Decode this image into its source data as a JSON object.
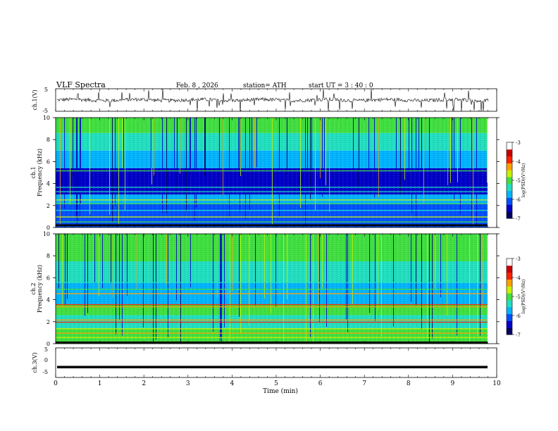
{
  "header": {
    "title": "VLF  Spectra",
    "date": "Feb. 8  , 2026",
    "station": "station= ATH",
    "start": "start  UT  =   3  : 40 : 0"
  },
  "colors": {
    "colormap": [
      "#000060",
      "#0000c8",
      "#0050ff",
      "#00b4ff",
      "#20e0c0",
      "#40e040",
      "#c8f000",
      "#ffa000",
      "#ff2000",
      "#c80000",
      "#ffffff"
    ]
  },
  "chart_data": [
    {
      "type": "line",
      "name": "ch1-waveform",
      "ylabel": "ch.1(V)",
      "ylim": [
        -5,
        5
      ],
      "yticks": [
        "5",
        "-5"
      ],
      "xlim": [
        0,
        10
      ],
      "note": "noisy broadband waveform, mostly between -1 and 1 V with spikes toward +/-5 V"
    },
    {
      "type": "heatmap",
      "name": "ch1-spectrogram",
      "ylabel": "ch.1\nFrequency (kHz)",
      "ylim": [
        0,
        10
      ],
      "yticks": [
        "0",
        "2",
        "4",
        "6",
        "8",
        "10"
      ],
      "xlim": [
        0,
        10
      ],
      "colorbar": {
        "label": "log(PSD)(V²/Hz)",
        "range": [
          -7,
          -3
        ],
        "ticks": [
          "-3",
          "-4",
          "-5",
          "-6",
          "-7"
        ]
      }
    },
    {
      "type": "heatmap",
      "name": "ch2-spectrogram",
      "ylabel": "ch.2\nFrequency (kHz)",
      "ylim": [
        0,
        10
      ],
      "yticks": [
        "0",
        "2",
        "4",
        "6",
        "8",
        "10"
      ],
      "xlim": [
        0,
        10
      ],
      "colorbar": {
        "label": "log(PSD)(V²/Hz)",
        "range": [
          -7,
          -3
        ],
        "ticks": [
          "-3",
          "-4",
          "-5",
          "-6",
          "-7"
        ]
      }
    },
    {
      "type": "line",
      "name": "ch3-waveform",
      "ylabel": "ch.3(V)",
      "ylim": [
        -5,
        5
      ],
      "yticks": [
        "5",
        "0",
        "-5"
      ],
      "xlim": [
        0,
        10
      ],
      "values_constant": -1.5
    }
  ],
  "xaxis": {
    "label": "Time  (min)",
    "ticks": [
      "0",
      "1",
      "2",
      "3",
      "4",
      "5",
      "6",
      "7",
      "8",
      "9",
      "10"
    ]
  }
}
